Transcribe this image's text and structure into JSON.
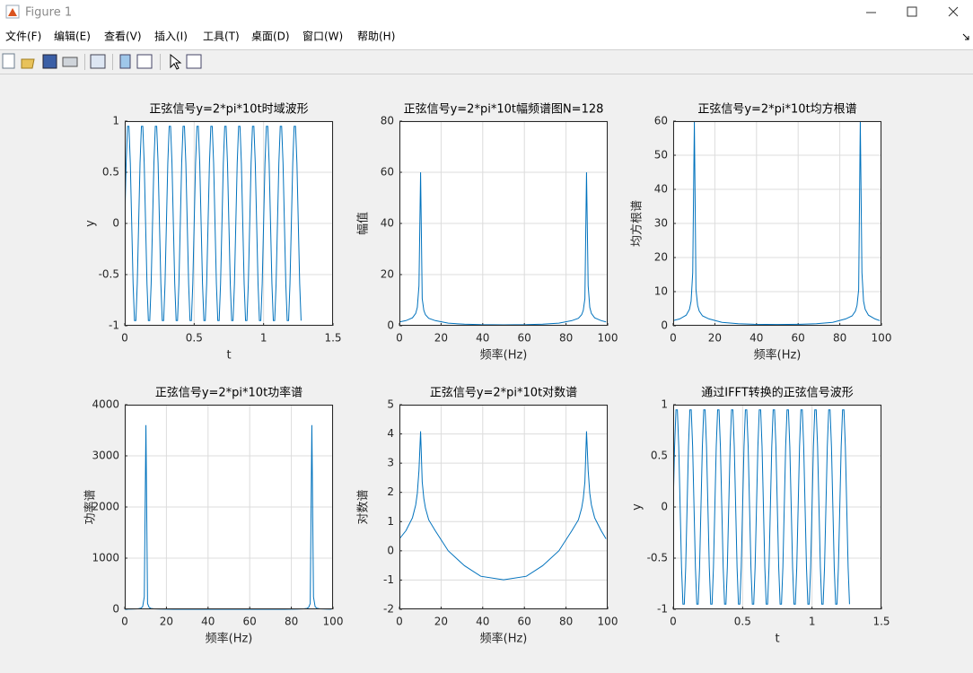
{
  "window": {
    "title": "Figure 1"
  },
  "menu": [
    "文件(F)",
    "编辑(E)",
    "查看(V)",
    "插入(I)",
    "工具(T)",
    "桌面(D)",
    "窗口(W)",
    "帮助(H)"
  ],
  "chart_data": [
    {
      "type": "line",
      "title": "正弦信号y=2*pi*10t时域波形",
      "xlabel": "t",
      "ylabel": "y",
      "color": "#0072bd",
      "grid": true,
      "xlim": [
        0,
        1.5
      ],
      "xticks": [
        0,
        0.5,
        1,
        1.5
      ],
      "ylim": [
        -1,
        1
      ],
      "yticks": [
        -1,
        -0.5,
        0,
        0.5,
        1
      ],
      "x": [
        0,
        0.01,
        0.02,
        0.03,
        0.04,
        0.05,
        0.06,
        0.07,
        0.08,
        0.09,
        0.1,
        0.11,
        0.12,
        0.13,
        0.14,
        0.15,
        0.16,
        0.17,
        0.18,
        0.19,
        0.2,
        0.21,
        0.22,
        0.23,
        0.24,
        0.25,
        0.26,
        0.27,
        0.28,
        0.29,
        0.3,
        0.31,
        0.32,
        0.33,
        0.34,
        0.35,
        0.36,
        0.37,
        0.38,
        0.39,
        0.4,
        0.41,
        0.42,
        0.43,
        0.44,
        0.45,
        0.46,
        0.47,
        0.48,
        0.49,
        0.5,
        0.51,
        0.52,
        0.53,
        0.54,
        0.55,
        0.56,
        0.57,
        0.58,
        0.59,
        0.6,
        0.61,
        0.62,
        0.63,
        0.64,
        0.65,
        0.66,
        0.67,
        0.68,
        0.69,
        0.7,
        0.71,
        0.72,
        0.73,
        0.74,
        0.75,
        0.76,
        0.77,
        0.78,
        0.79,
        0.8,
        0.81,
        0.82,
        0.83,
        0.84,
        0.85,
        0.86,
        0.87,
        0.88,
        0.89,
        0.9,
        0.91,
        0.92,
        0.93,
        0.94,
        0.95,
        0.96,
        0.97,
        0.98,
        0.99,
        1,
        1.01,
        1.02,
        1.03,
        1.04,
        1.05,
        1.06,
        1.07,
        1.08,
        1.09,
        1.1,
        1.11,
        1.12,
        1.13,
        1.14,
        1.15,
        1.16,
        1.17,
        1.18,
        1.19,
        1.2,
        1.21,
        1.22,
        1.23,
        1.24,
        1.25,
        1.26,
        1.27
      ],
      "values": [
        0,
        0.59,
        0.95,
        0.95,
        0.59,
        0,
        -0.59,
        -0.95,
        -0.95,
        -0.59,
        0,
        0.59,
        0.95,
        0.95,
        0.59,
        0,
        -0.59,
        -0.95,
        -0.95,
        -0.59,
        0,
        0.59,
        0.95,
        0.95,
        0.59,
        0,
        -0.59,
        -0.95,
        -0.95,
        -0.59,
        0,
        0.59,
        0.95,
        0.95,
        0.59,
        0,
        -0.59,
        -0.95,
        -0.95,
        -0.59,
        0,
        0.59,
        0.95,
        0.95,
        0.59,
        0,
        -0.59,
        -0.95,
        -0.95,
        -0.59,
        0,
        0.59,
        0.95,
        0.95,
        0.59,
        0,
        -0.59,
        -0.95,
        -0.95,
        -0.59,
        0,
        0.59,
        0.95,
        0.95,
        0.59,
        0,
        -0.59,
        -0.95,
        -0.95,
        -0.59,
        0,
        0.59,
        0.95,
        0.95,
        0.59,
        0,
        -0.59,
        -0.95,
        -0.95,
        -0.59,
        0,
        0.59,
        0.95,
        0.95,
        0.59,
        0,
        -0.59,
        -0.95,
        -0.95,
        -0.59,
        0,
        0.59,
        0.95,
        0.95,
        0.59,
        0,
        -0.59,
        -0.95,
        -0.95,
        -0.59,
        0,
        0.59,
        0.95,
        0.95,
        0.59,
        0,
        -0.59,
        -0.95,
        -0.95,
        -0.59,
        0,
        0.59,
        0.95,
        0.95,
        0.59,
        0,
        -0.59,
        -0.95,
        -0.95,
        -0.59,
        0,
        0.59,
        0.95,
        0.95,
        0.59,
        0,
        -0.59,
        -0.95
      ]
    },
    {
      "type": "line",
      "title": "正弦信号y=2*pi*10t幅频谱图N=128",
      "xlabel": "频率(Hz)",
      "ylabel": "幅值",
      "color": "#0072bd",
      "grid": true,
      "xlim": [
        0,
        100
      ],
      "xticks": [
        0,
        20,
        40,
        60,
        80,
        100
      ],
      "ylim": [
        0,
        80
      ],
      "yticks": [
        0,
        20,
        40,
        60,
        80
      ],
      "x": [
        0,
        3.13,
        6.25,
        7.81,
        8.59,
        9.38,
        10.16,
        10.94,
        11.72,
        12.5,
        14.06,
        17.19,
        23.44,
        31.25,
        39.06,
        50,
        60.94,
        68.75,
        76.56,
        82.81,
        85.94,
        87.5,
        88.28,
        89.06,
        89.84,
        90.63,
        91.41,
        92.19,
        93.75,
        96.88,
        99.22
      ],
      "values": [
        1.5,
        2.0,
        3.1,
        4.8,
        7.2,
        15.6,
        60,
        10.6,
        6.0,
        4.3,
        2.9,
        2.0,
        1.0,
        0.6,
        0.42,
        0.37,
        0.42,
        0.6,
        1.0,
        2.0,
        2.9,
        4.3,
        6.0,
        10.6,
        60,
        15.6,
        7.2,
        4.8,
        3.1,
        2.0,
        1.5
      ]
    },
    {
      "type": "line",
      "title": "正弦信号y=2*pi*10t均方根谱",
      "xlabel": "频率(Hz)",
      "ylabel": "均方根谱",
      "color": "#0072bd",
      "grid": true,
      "xlim": [
        0,
        100
      ],
      "xticks": [
        0,
        20,
        40,
        60,
        80,
        100
      ],
      "ylim": [
        0,
        60
      ],
      "yticks": [
        0,
        10,
        20,
        30,
        40,
        50,
        60
      ],
      "x": [
        0,
        3.13,
        6.25,
        7.81,
        8.59,
        9.38,
        10.16,
        10.94,
        11.72,
        12.5,
        14.06,
        17.19,
        23.44,
        31.25,
        39.06,
        50,
        60.94,
        68.75,
        76.56,
        82.81,
        85.94,
        87.5,
        88.28,
        89.06,
        89.84,
        90.63,
        91.41,
        92.19,
        93.75,
        96.88,
        99.22
      ],
      "values": [
        1.5,
        2.0,
        3.1,
        4.8,
        7.2,
        15.6,
        60,
        10.6,
        6.0,
        4.3,
        2.9,
        2.0,
        1.0,
        0.6,
        0.42,
        0.37,
        0.42,
        0.6,
        1.0,
        2.0,
        2.9,
        4.3,
        6.0,
        10.6,
        60,
        15.6,
        7.2,
        4.8,
        3.1,
        2.0,
        1.5
      ]
    },
    {
      "type": "line",
      "title": "正弦信号y=2*pi*10t功率谱",
      "xlabel": "频率(Hz)",
      "ylabel": "功率谱",
      "color": "#0072bd",
      "grid": true,
      "xlim": [
        0,
        100
      ],
      "xticks": [
        0,
        20,
        40,
        60,
        80,
        100
      ],
      "ylim": [
        0,
        4000
      ],
      "yticks": [
        0,
        1000,
        2000,
        3000,
        4000
      ],
      "x": [
        0,
        3.13,
        6.25,
        7.81,
        8.59,
        9.38,
        10.16,
        10.94,
        11.72,
        12.5,
        14.06,
        17.19,
        23.44,
        31.25,
        39.06,
        50,
        60.94,
        68.75,
        76.56,
        82.81,
        85.94,
        87.5,
        88.28,
        89.06,
        89.84,
        90.63,
        91.41,
        92.19,
        93.75,
        96.88,
        99.22
      ],
      "values": [
        2.25,
        4,
        9.61,
        23,
        52,
        243,
        3600,
        112,
        36,
        18.5,
        8.41,
        4,
        1,
        0.36,
        0.18,
        0.14,
        0.18,
        0.36,
        1,
        4,
        8.41,
        18.5,
        36,
        112,
        3600,
        243,
        52,
        23,
        9.61,
        4,
        2.25
      ]
    },
    {
      "type": "line",
      "title": "正弦信号y=2*pi*10t对数谱",
      "xlabel": "频率(Hz)",
      "ylabel": "对数谱",
      "color": "#0072bd",
      "grid": true,
      "xlim": [
        0,
        100
      ],
      "xticks": [
        0,
        20,
        40,
        60,
        80,
        100
      ],
      "ylim": [
        -2,
        5
      ],
      "yticks": [
        -2,
        -1,
        0,
        1,
        2,
        3,
        4,
        5
      ],
      "x": [
        0,
        3.13,
        6.25,
        7.81,
        8.59,
        9.38,
        10.16,
        10.94,
        11.72,
        12.5,
        14.06,
        17.19,
        23.44,
        31.25,
        39.06,
        50,
        60.94,
        68.75,
        76.56,
        82.81,
        85.94,
        87.5,
        88.28,
        89.06,
        89.84,
        90.63,
        91.41,
        92.19,
        93.75,
        96.88,
        99.22
      ],
      "values": [
        0.41,
        0.69,
        1.13,
        1.57,
        1.97,
        2.75,
        4.09,
        2.36,
        1.79,
        1.46,
        1.06,
        0.69,
        0,
        -0.51,
        -0.87,
        -0.99,
        -0.87,
        -0.51,
        0,
        0.69,
        1.06,
        1.46,
        1.79,
        2.36,
        4.09,
        2.75,
        1.97,
        1.57,
        1.13,
        0.69,
        0.41
      ]
    },
    {
      "type": "line",
      "title": "通过IFFT转换的正弦信号波形",
      "xlabel": "t",
      "ylabel": "y",
      "color": "#0072bd",
      "grid": true,
      "xlim": [
        0,
        1.5
      ],
      "xticks": [
        0,
        0.5,
        1,
        1.5
      ],
      "ylim": [
        -1,
        1
      ],
      "yticks": [
        -1,
        -0.5,
        0,
        0.5,
        1
      ],
      "x": [
        0,
        0.01,
        0.02,
        0.03,
        0.04,
        0.05,
        0.06,
        0.07,
        0.08,
        0.09,
        0.1,
        0.11,
        0.12,
        0.13,
        0.14,
        0.15,
        0.16,
        0.17,
        0.18,
        0.19,
        0.2,
        0.21,
        0.22,
        0.23,
        0.24,
        0.25,
        0.26,
        0.27,
        0.28,
        0.29,
        0.3,
        0.31,
        0.32,
        0.33,
        0.34,
        0.35,
        0.36,
        0.37,
        0.38,
        0.39,
        0.4,
        0.41,
        0.42,
        0.43,
        0.44,
        0.45,
        0.46,
        0.47,
        0.48,
        0.49,
        0.5,
        0.51,
        0.52,
        0.53,
        0.54,
        0.55,
        0.56,
        0.57,
        0.58,
        0.59,
        0.6,
        0.61,
        0.62,
        0.63,
        0.64,
        0.65,
        0.66,
        0.67,
        0.68,
        0.69,
        0.7,
        0.71,
        0.72,
        0.73,
        0.74,
        0.75,
        0.76,
        0.77,
        0.78,
        0.79,
        0.8,
        0.81,
        0.82,
        0.83,
        0.84,
        0.85,
        0.86,
        0.87,
        0.88,
        0.89,
        0.9,
        0.91,
        0.92,
        0.93,
        0.94,
        0.95,
        0.96,
        0.97,
        0.98,
        0.99,
        1,
        1.01,
        1.02,
        1.03,
        1.04,
        1.05,
        1.06,
        1.07,
        1.08,
        1.09,
        1.1,
        1.11,
        1.12,
        1.13,
        1.14,
        1.15,
        1.16,
        1.17,
        1.18,
        1.19,
        1.2,
        1.21,
        1.22,
        1.23,
        1.24,
        1.25,
        1.26,
        1.27
      ],
      "values": [
        0,
        0.59,
        0.95,
        0.95,
        0.59,
        0,
        -0.59,
        -0.95,
        -0.95,
        -0.59,
        0,
        0.59,
        0.95,
        0.95,
        0.59,
        0,
        -0.59,
        -0.95,
        -0.95,
        -0.59,
        0,
        0.59,
        0.95,
        0.95,
        0.59,
        0,
        -0.59,
        -0.95,
        -0.95,
        -0.59,
        0,
        0.59,
        0.95,
        0.95,
        0.59,
        0,
        -0.59,
        -0.95,
        -0.95,
        -0.59,
        0,
        0.59,
        0.95,
        0.95,
        0.59,
        0,
        -0.59,
        -0.95,
        -0.95,
        -0.59,
        0,
        0.59,
        0.95,
        0.95,
        0.59,
        0,
        -0.59,
        -0.95,
        -0.95,
        -0.59,
        0,
        0.59,
        0.95,
        0.95,
        0.59,
        0,
        -0.59,
        -0.95,
        -0.95,
        -0.59,
        0,
        0.59,
        0.95,
        0.95,
        0.59,
        0,
        -0.59,
        -0.95,
        -0.95,
        -0.59,
        0,
        0.59,
        0.95,
        0.95,
        0.59,
        0,
        -0.59,
        -0.95,
        -0.95,
        -0.59,
        0,
        0.59,
        0.95,
        0.95,
        0.59,
        0,
        -0.59,
        -0.95,
        -0.95,
        -0.59,
        0,
        0.59,
        0.95,
        0.95,
        0.59,
        0,
        -0.59,
        -0.95,
        -0.95,
        -0.59,
        0,
        0.59,
        0.95,
        0.95,
        0.59,
        0,
        -0.59,
        -0.95,
        -0.95,
        -0.59,
        0,
        0.59,
        0.95,
        0.95,
        0.59,
        0,
        -0.59,
        -0.95
      ]
    }
  ]
}
